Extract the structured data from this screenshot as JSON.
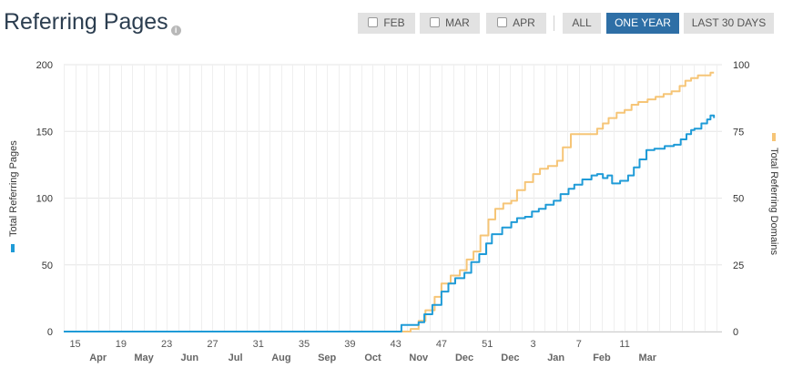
{
  "header": {
    "title": "Referring Pages",
    "info_icon": "info-icon"
  },
  "toolbar": {
    "feb_label": "FEB",
    "mar_label": "MAR",
    "apr_label": "APR",
    "all_label": "ALL",
    "one_year_label": "ONE YEAR",
    "last30_label": "LAST 30 DAYS",
    "active": "ONE YEAR",
    "active_color": "#2e6fa6"
  },
  "chart_data": {
    "type": "line",
    "x_unit": "week",
    "x_week_ticks": [
      "15",
      "19",
      "23",
      "27",
      "31",
      "35",
      "39",
      "43",
      "47",
      "51",
      "3",
      "7",
      "11"
    ],
    "x_month_ticks": [
      "Apr",
      "May",
      "Jun",
      "Jul",
      "Aug",
      "Sep",
      "Oct",
      "Nov",
      "Dec",
      "Dec",
      "Jan",
      "Feb",
      "Mar"
    ],
    "left_axis": {
      "label": "Total Referring Pages",
      "range": [
        0,
        200
      ],
      "ticks": [
        "0",
        "50",
        "100",
        "150",
        "200"
      ]
    },
    "right_axis": {
      "label": "Total Referring Domains",
      "range": [
        0,
        100
      ],
      "ticks": [
        "0",
        "25",
        "50",
        "75",
        "100"
      ]
    },
    "grid": true,
    "series": [
      {
        "name": "Total Referring Pages",
        "axis": "left",
        "color": "#1f9bd7",
        "points": [
          [
            14,
            0
          ],
          [
            43.2,
            0
          ],
          [
            43.5,
            5
          ],
          [
            44.5,
            5
          ],
          [
            45,
            7
          ],
          [
            45.5,
            13
          ],
          [
            46.2,
            20
          ],
          [
            47,
            30
          ],
          [
            47.6,
            36
          ],
          [
            48.2,
            40
          ],
          [
            49,
            44
          ],
          [
            49.6,
            52
          ],
          [
            50.3,
            58
          ],
          [
            50.9,
            66
          ],
          [
            51.4,
            73
          ],
          [
            52.3,
            78
          ],
          [
            53.1,
            82
          ],
          [
            53.6,
            85
          ],
          [
            54.3,
            86
          ],
          [
            54.9,
            90
          ],
          [
            55.5,
            92
          ],
          [
            56.1,
            95
          ],
          [
            56.8,
            98
          ],
          [
            57.4,
            103
          ],
          [
            58.1,
            107
          ],
          [
            58.6,
            110
          ],
          [
            59.3,
            114
          ],
          [
            60.1,
            117
          ],
          [
            60.6,
            118
          ],
          [
            61.1,
            115
          ],
          [
            61.5,
            117
          ],
          [
            61.9,
            111
          ],
          [
            62.6,
            113
          ],
          [
            63.3,
            117
          ],
          [
            63.8,
            123
          ],
          [
            64.3,
            129
          ],
          [
            64.9,
            136
          ],
          [
            65.6,
            137
          ],
          [
            66.5,
            139
          ],
          [
            67.3,
            140
          ],
          [
            67.9,
            144
          ],
          [
            68.4,
            148
          ],
          [
            68.8,
            151
          ],
          [
            69.1,
            152
          ],
          [
            69.7,
            156
          ],
          [
            70.2,
            159
          ],
          [
            70.5,
            162
          ],
          [
            70.8,
            160
          ]
        ]
      },
      {
        "name": "Total Referring Domains",
        "axis": "right",
        "color": "#f6c577",
        "points": [
          [
            14,
            0
          ],
          [
            43.4,
            0
          ],
          [
            44.3,
            1
          ],
          [
            45,
            4
          ],
          [
            45.6,
            8
          ],
          [
            46.4,
            13
          ],
          [
            47,
            18
          ],
          [
            47.8,
            21
          ],
          [
            48.6,
            23
          ],
          [
            49.2,
            27
          ],
          [
            49.8,
            30
          ],
          [
            50.4,
            36
          ],
          [
            51.1,
            42
          ],
          [
            51.7,
            46
          ],
          [
            52.4,
            48
          ],
          [
            53.1,
            49
          ],
          [
            53.6,
            53
          ],
          [
            54.3,
            56
          ],
          [
            55,
            59
          ],
          [
            55.6,
            61
          ],
          [
            56.3,
            62
          ],
          [
            57.1,
            64
          ],
          [
            57.6,
            69
          ],
          [
            58.3,
            74
          ],
          [
            59.2,
            74
          ],
          [
            60,
            74
          ],
          [
            60.6,
            76
          ],
          [
            61.1,
            78
          ],
          [
            61.6,
            80
          ],
          [
            62.3,
            82
          ],
          [
            63,
            83
          ],
          [
            63.6,
            85
          ],
          [
            64.2,
            86
          ],
          [
            65,
            87
          ],
          [
            65.7,
            88
          ],
          [
            66.4,
            89
          ],
          [
            67.1,
            90
          ],
          [
            67.8,
            92
          ],
          [
            68.3,
            94
          ],
          [
            68.8,
            95
          ],
          [
            69.4,
            96
          ],
          [
            70,
            96
          ],
          [
            70.5,
            97
          ],
          [
            70.8,
            97
          ]
        ]
      }
    ]
  }
}
